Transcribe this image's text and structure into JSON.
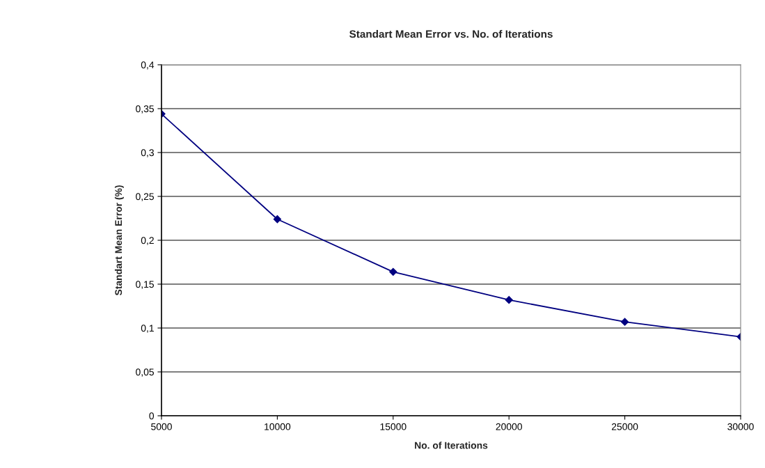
{
  "chart_data": {
    "type": "line",
    "title": "Standart Mean Error vs. No. of Iterations",
    "xlabel": "No. of Iterations",
    "ylabel": "Standart Mean Error (%)",
    "x": [
      5000,
      10000,
      15000,
      20000,
      25000,
      30000
    ],
    "series": [
      {
        "color": "#000080",
        "values": [
          0.344,
          0.224,
          0.164,
          0.132,
          0.107,
          0.09
        ]
      }
    ],
    "xlim": [
      5000,
      30000
    ],
    "xticks": [
      5000,
      10000,
      15000,
      20000,
      25000,
      30000
    ],
    "ylim": [
      0,
      0.4
    ],
    "yticks": [
      {
        "value": 0,
        "label": "0"
      },
      {
        "value": 0.05,
        "label": "0,05"
      },
      {
        "value": 0.1,
        "label": "0,1"
      },
      {
        "value": 0.15,
        "label": "0,15"
      },
      {
        "value": 0.2,
        "label": "0,2"
      },
      {
        "value": 0.25,
        "label": "0,25"
      },
      {
        "value": 0.3,
        "label": "0,3"
      },
      {
        "value": 0.35,
        "label": "0,35"
      },
      {
        "value": 0.4,
        "label": "0,4"
      }
    ],
    "grid": "y",
    "marker": "diamond",
    "line_style": "solid",
    "legend": false
  }
}
